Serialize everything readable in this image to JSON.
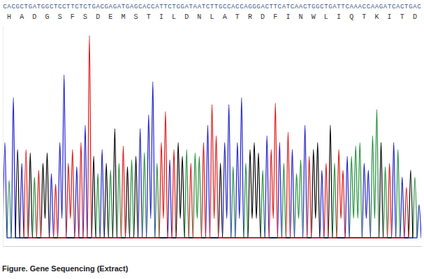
{
  "chart_data": {
    "type": "line",
    "title": "Figure. Gene Sequencing (Extract)",
    "sequence": [
      "C",
      "A",
      "C",
      "G",
      "C",
      "T",
      "G",
      "A",
      "T",
      "G",
      "G",
      "C",
      "T",
      "C",
      "C",
      "T",
      "T",
      "C",
      "T",
      "C",
      "T",
      "G",
      "A",
      "C",
      "G",
      "A",
      "G",
      "A",
      "T",
      "G",
      "A",
      "G",
      "C",
      "A",
      "C",
      "C",
      "A",
      "T",
      "T",
      "C",
      "T",
      "G",
      "G",
      "A",
      "T",
      "A",
      "A",
      "T",
      "C",
      "T",
      "T",
      "G",
      "C",
      "C",
      "A",
      "C",
      "C",
      "A",
      "G",
      "G",
      "G",
      "A",
      "C",
      "T",
      "T",
      "C",
      "A",
      "T",
      "C",
      "A",
      "A",
      "C",
      "T",
      "G",
      "G",
      "C",
      "T",
      "G",
      "A",
      "T",
      "T",
      "C",
      "A",
      "A",
      "A",
      "C",
      "C",
      "A",
      "A",
      "G",
      "A",
      "T",
      "C",
      "A",
      "C",
      "T",
      "G",
      "A",
      "C"
    ],
    "translation": [
      "H",
      "A",
      "D",
      "G",
      "S",
      "F",
      "S",
      "D",
      "E",
      "M",
      "S",
      "T",
      "I",
      "L",
      "D",
      "N",
      "L",
      "A",
      "T",
      "R",
      "D",
      "F",
      "I",
      "N",
      "W",
      "L",
      "I",
      "Q",
      "T",
      "K",
      "I",
      "T",
      "D"
    ],
    "xlim": [
      -0.5,
      98.5
    ],
    "ylim": [
      0,
      320
    ],
    "xticks": [],
    "yticks": [],
    "tick_labels": false,
    "grid": false,
    "series": [
      {
        "color": "#1f8f3a",
        "x": [
          0.5,
          1,
          1.5,
          6.5,
          7,
          7.5,
          21.5,
          22,
          22.5,
          24.5,
          25,
          25.5,
          26.5,
          27,
          27.5,
          29.5,
          30,
          30.5,
          32.5,
          33,
          33.5,
          35.5,
          36,
          36.5,
          42.5,
          43,
          43.5,
          44.5,
          45,
          45.5,
          46,
          46.5,
          53.5,
          54,
          54.5,
          56.5,
          57,
          57.5,
          60.5,
          61,
          61.5,
          65.5,
          66,
          66.5,
          68.5,
          69,
          69.5,
          70,
          70.5,
          77.5,
          78,
          78.5,
          81.5,
          82,
          82.5,
          83,
          83.5,
          84,
          84.5,
          86.5,
          87,
          87.5,
          88,
          88.5,
          89.5,
          90,
          90.5,
          92.5,
          93,
          93.5,
          96.5,
          97,
          97.5
        ],
        "values": [
          12,
          95,
          12,
          12,
          100,
          12,
          12,
          105,
          12,
          12,
          110,
          12,
          12,
          120,
          12,
          12,
          125,
          12,
          12,
          135,
          12,
          12,
          120,
          12,
          12,
          140,
          12,
          12,
          135,
          40,
          130,
          12,
          12,
          115,
          12,
          12,
          120,
          12,
          12,
          110,
          12,
          12,
          120,
          12,
          12,
          105,
          40,
          125,
          12,
          12,
          120,
          12,
          12,
          130,
          40,
          145,
          40,
          150,
          12,
          12,
          160,
          40,
          198,
          12,
          12,
          115,
          12,
          12,
          140,
          12,
          12,
          100,
          12
        ]
      },
      {
        "color": "#1c1ccc",
        "x": [
          -0.5,
          0,
          0.5,
          1.5,
          2,
          2.5,
          3.5,
          4,
          4.5,
          10.5,
          11,
          11.5,
          12.5,
          13,
          13.5,
          14,
          14.5,
          16.5,
          17,
          17.5,
          18.5,
          19,
          19.5,
          22.5,
          23,
          23.5,
          31.5,
          32,
          32.5,
          33.5,
          34,
          34.5,
          35,
          35.5,
          38.5,
          39,
          39.5,
          47.5,
          48,
          48.5,
          51.5,
          52,
          52.5,
          53,
          53.5,
          54.5,
          55,
          55.5,
          56,
          56.5,
          61.5,
          62,
          62.5,
          64.5,
          65,
          65.5,
          67.5,
          68,
          68.5,
          70.5,
          71,
          71.5,
          74.5,
          75,
          75.5,
          80.5,
          81,
          81.5,
          84.5,
          85,
          85.5,
          86,
          86.5,
          91.5,
          92,
          92.5,
          93.5,
          94,
          94.5,
          97.5,
          98,
          98.5
        ],
        "values": [
          12,
          150,
          12,
          12,
          215,
          12,
          12,
          120,
          12,
          12,
          105,
          12,
          12,
          150,
          40,
          248,
          12,
          12,
          115,
          12,
          12,
          175,
          12,
          12,
          140,
          12,
          12,
          170,
          12,
          12,
          190,
          40,
          238,
          12,
          12,
          125,
          12,
          12,
          175,
          12,
          12,
          150,
          40,
          205,
          12,
          12,
          150,
          40,
          215,
          12,
          12,
          160,
          12,
          12,
          150,
          12,
          12,
          140,
          12,
          12,
          175,
          12,
          12,
          110,
          12,
          12,
          130,
          12,
          12,
          120,
          40,
          110,
          12,
          12,
          150,
          12,
          12,
          100,
          12,
          12,
          60,
          12
        ]
      },
      {
        "color": "#000000",
        "x": [
          2.5,
          3,
          3.5,
          5.5,
          6,
          6.5,
          8.5,
          9,
          9.5,
          10,
          10.5,
          20.5,
          21,
          21.5,
          23.5,
          24,
          24.5,
          25.5,
          26,
          26.5,
          28.5,
          29,
          29.5,
          30.5,
          31,
          31.5,
          40.5,
          41,
          41.5,
          42,
          42.5,
          50.5,
          51,
          51.5,
          57.5,
          58,
          58.5,
          59,
          59.5,
          60,
          60.5,
          72.5,
          73,
          73.5,
          74,
          74.5,
          76.5,
          77,
          77.5,
          88.5,
          89,
          89.5,
          95.5,
          96,
          96.5
        ],
        "values": [
          12,
          140,
          12,
          12,
          135,
          12,
          12,
          120,
          40,
          135,
          12,
          12,
          130,
          12,
          12,
          120,
          12,
          12,
          170,
          12,
          12,
          115,
          12,
          12,
          130,
          12,
          12,
          150,
          40,
          130,
          12,
          12,
          120,
          12,
          12,
          140,
          40,
          150,
          40,
          135,
          12,
          12,
          140,
          40,
          150,
          12,
          12,
          175,
          12,
          12,
          150,
          12,
          12,
          110,
          12
        ]
      },
      {
        "color": "#e01414",
        "x": [
          4.5,
          5,
          5.5,
          7.5,
          8,
          8.5,
          11.5,
          12,
          12.5,
          14.5,
          15,
          15.5,
          16,
          16.5,
          17.5,
          18,
          18.5,
          19.5,
          20,
          20.5,
          27.5,
          28,
          28.5,
          36.5,
          37,
          37.5,
          38,
          38.5,
          39.5,
          40,
          40.5,
          43.5,
          44,
          44.5,
          46.5,
          47,
          47.5,
          48.5,
          49,
          49.5,
          50,
          50.5,
          62.5,
          63,
          63.5,
          64,
          64.5,
          66.5,
          67,
          67.5,
          71.5,
          72,
          72.5,
          75.5,
          76,
          76.5,
          78.5,
          79,
          79.5,
          80,
          80.5,
          90.5,
          91,
          91.5,
          94.5,
          95,
          95.5
        ],
        "values": [
          12,
          140,
          12,
          12,
          110,
          12,
          12,
          90,
          12,
          12,
          120,
          40,
          140,
          12,
          12,
          150,
          12,
          12,
          305,
          12,
          12,
          145,
          12,
          12,
          150,
          40,
          195,
          12,
          12,
          140,
          12,
          12,
          120,
          12,
          12,
          150,
          12,
          12,
          205,
          40,
          160,
          12,
          12,
          140,
          40,
          207,
          12,
          12,
          165,
          12,
          12,
          130,
          12,
          12,
          120,
          12,
          12,
          140,
          40,
          110,
          12,
          12,
          120,
          12,
          12,
          85,
          12
        ]
      }
    ]
  }
}
